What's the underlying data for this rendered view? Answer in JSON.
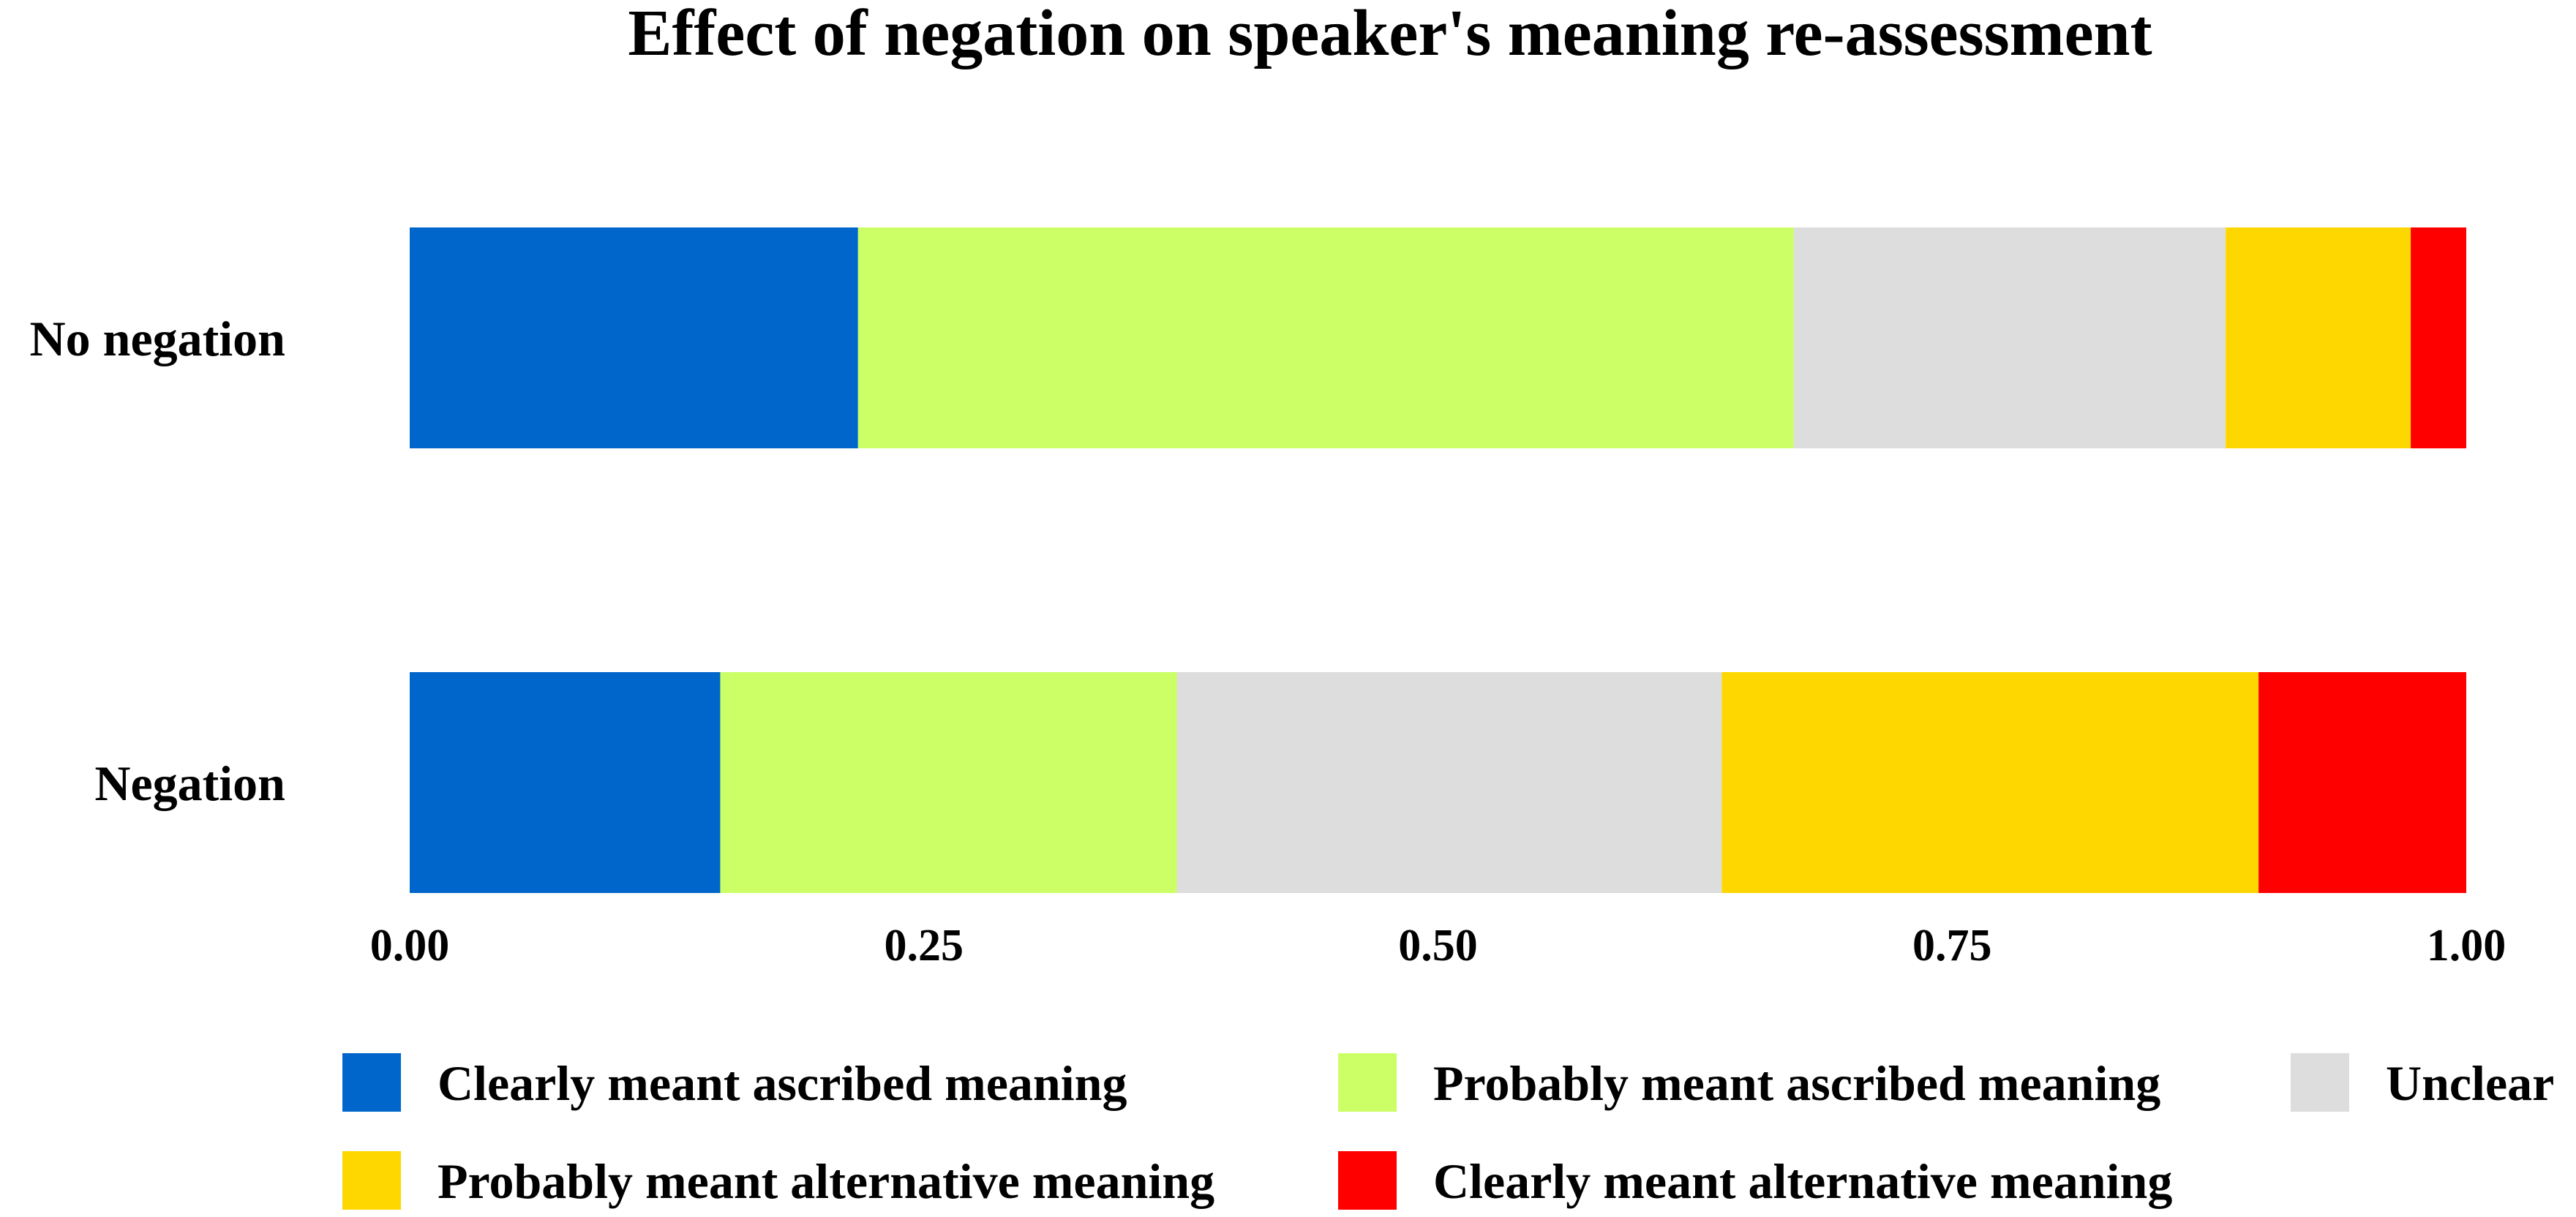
{
  "chart_data": {
    "type": "bar",
    "orientation": "horizontal",
    "stacked": true,
    "title": "Effect of negation on speaker's meaning re-assessment",
    "xlabel": "",
    "ylabel": "",
    "xlim": [
      0,
      1
    ],
    "x_ticks": [
      "0.00",
      "0.25",
      "0.50",
      "0.75",
      "1.00"
    ],
    "x_tick_values": [
      0,
      0.25,
      0.5,
      0.75,
      1.0
    ],
    "grid": false,
    "legend_position": "bottom",
    "categories": [
      "No negation",
      "Negation"
    ],
    "series": [
      {
        "name": "Clearly meant ascribed meaning",
        "color": "#0066CC",
        "values": [
          0.218,
          0.151
        ]
      },
      {
        "name": "Probably meant ascribed meaning",
        "color": "#CCFF66",
        "values": [
          0.455,
          0.222
        ]
      },
      {
        "name": "Unclear",
        "color": "#DDDDDD",
        "values": [
          0.21,
          0.265
        ]
      },
      {
        "name": "Probably meant alternative meaning",
        "color": "#FFD700",
        "values": [
          0.09,
          0.261
        ]
      },
      {
        "name": "Clearly meant alternative meaning",
        "color": "#FF0000",
        "values": [
          0.027,
          0.101
        ]
      }
    ]
  }
}
